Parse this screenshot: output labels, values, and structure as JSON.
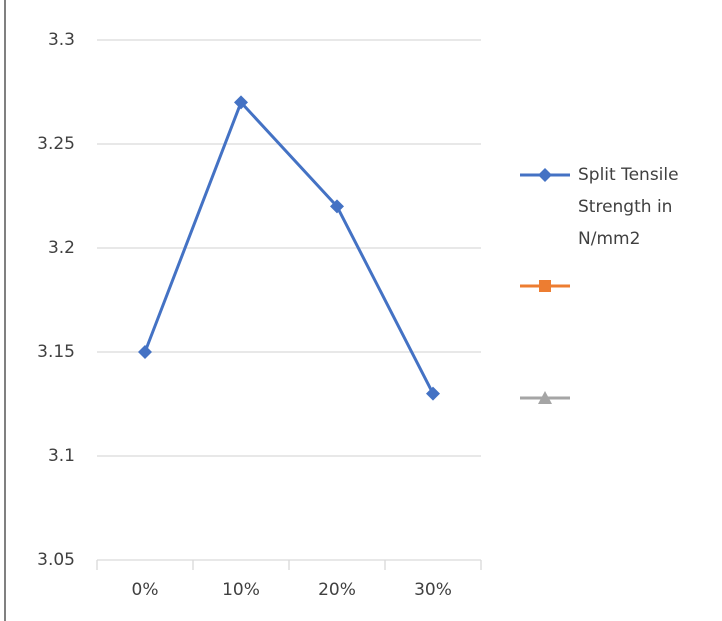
{
  "chart_data": {
    "type": "line",
    "categories": [
      "0%",
      "10%",
      "20%",
      "30%"
    ],
    "series": [
      {
        "name": "Split Tensile Strength in N/mm2",
        "color": "#4472c4",
        "marker": "diamond",
        "values": [
          3.15,
          3.27,
          3.22,
          3.13
        ]
      },
      {
        "name": null,
        "color": "#ed7d31",
        "marker": "square",
        "values": [
          null,
          null,
          null,
          null
        ]
      },
      {
        "name": null,
        "color": "#a5a5a5",
        "marker": "triangle",
        "values": [
          null,
          null,
          null,
          null
        ]
      }
    ],
    "ylim": [
      3.05,
      3.3
    ],
    "yticks": [
      3.05,
      3.1,
      3.15,
      3.2,
      3.25,
      3.3
    ],
    "grid": true,
    "legend": "right"
  }
}
